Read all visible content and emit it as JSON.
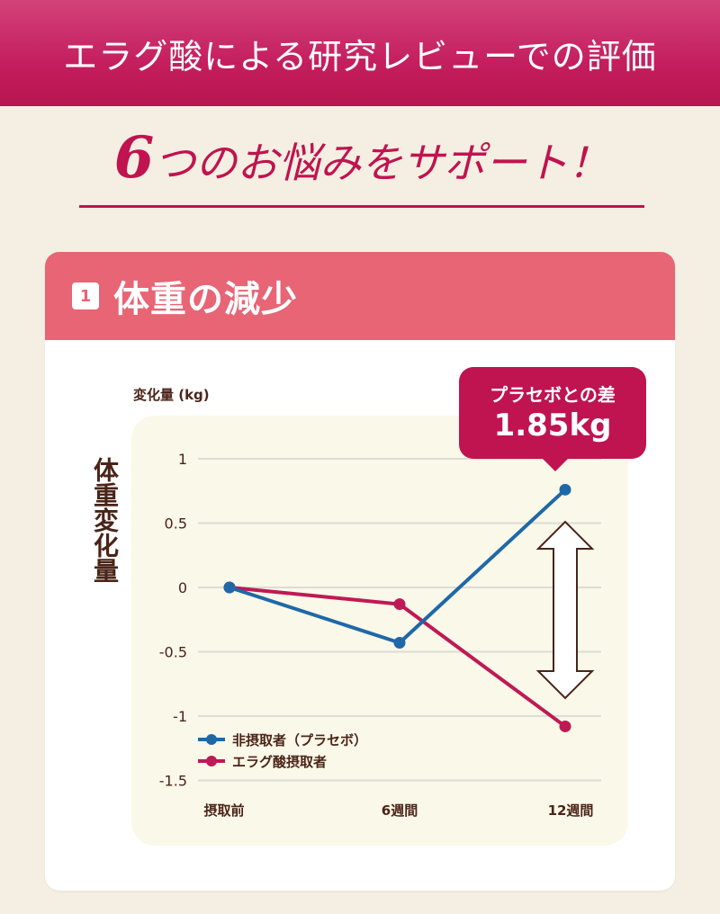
{
  "banner": {
    "title": "エラグ酸による研究レビューでの評価"
  },
  "headline": {
    "number": "6",
    "text": "つのお悩みをサポート！"
  },
  "card": {
    "badge_number": "1",
    "title": "体重の減少",
    "y_unit_label": "変化量 (kg)",
    "y_axis_title": "体重変化量",
    "callout": {
      "label": "プラセボとの差",
      "value": "1.85kg"
    }
  },
  "legend": [
    {
      "label": "非摂取者（プラセボ）",
      "color": "#1f68a8"
    },
    {
      "label": "エラグ酸摂取者",
      "color": "#be1a55"
    }
  ],
  "y_ticks": [
    "1",
    "0.5",
    "0",
    "-0.5",
    "-1",
    "-1.5"
  ],
  "x_ticks": [
    "摂取前",
    "6週間",
    "12週間"
  ],
  "chart_data": {
    "type": "line",
    "title": "体重の減少",
    "xlabel": "",
    "ylabel": "体重変化量 変化量 (kg)",
    "categories": [
      "摂取前",
      "6週間",
      "12週間"
    ],
    "series": [
      {
        "name": "非摂取者（プラセボ）",
        "color": "#1f68a8",
        "values": [
          0,
          -0.43,
          0.76
        ]
      },
      {
        "name": "エラグ酸摂取者",
        "color": "#be1a55",
        "values": [
          0,
          -0.13,
          -1.08
        ]
      }
    ],
    "ylim": [
      -1.5,
      1
    ],
    "yticks": [
      1,
      0.5,
      0,
      -0.5,
      -1,
      -1.5
    ],
    "grid": true,
    "legend_position": "lower-left",
    "annotations": [
      "プラセボとの差 1.85kg",
      "double-headed arrow at 12週間"
    ]
  }
}
